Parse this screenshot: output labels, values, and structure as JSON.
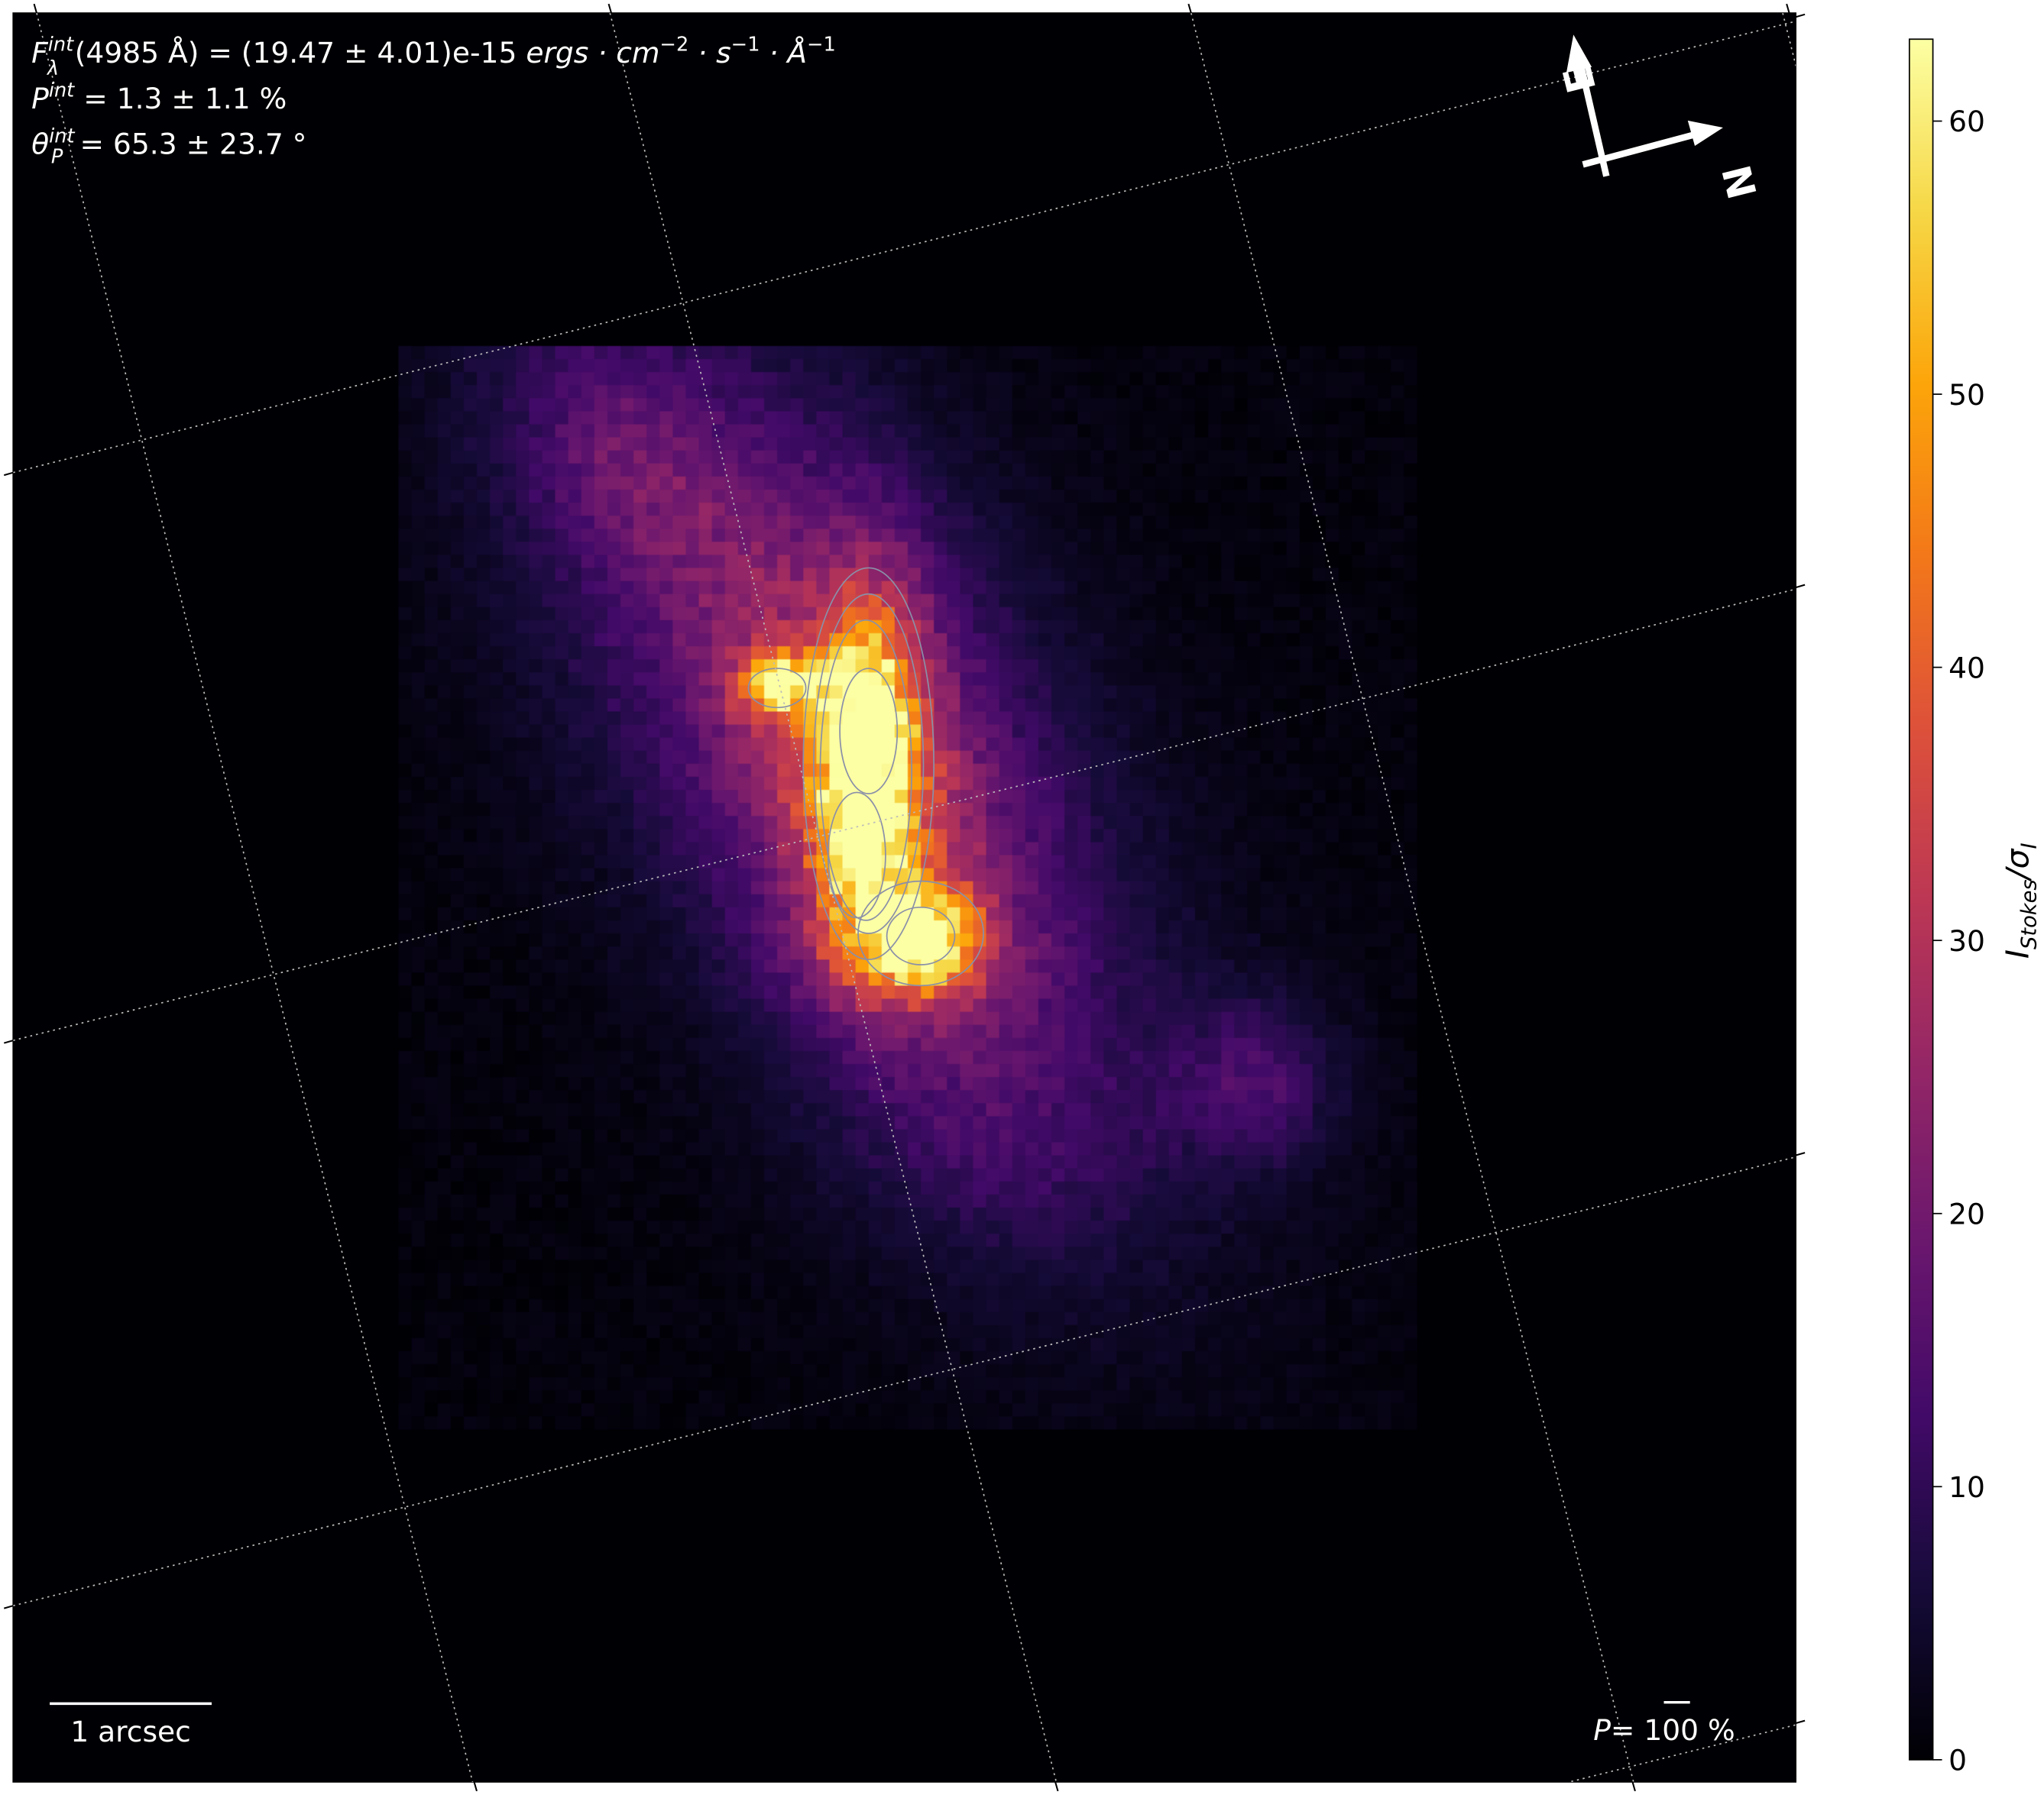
{
  "chart_data": {
    "type": "heatmap",
    "title": "",
    "colormap": "inferno",
    "colorbar": {
      "label": "I_Stokes/σ_I",
      "label_main": "I",
      "label_sub": "Stokes",
      "label_den": "/σ",
      "label_den_sub": "I",
      "range": [
        0,
        63
      ],
      "ticks": [
        0,
        10,
        20,
        30,
        40,
        50,
        60
      ],
      "tick_labels": [
        "0",
        "10",
        "20",
        "30",
        "40",
        "50",
        "60"
      ]
    },
    "grid": true,
    "contours": true,
    "annotations": {
      "flux": {
        "symbol": "F",
        "sup": "int",
        "sub": "λ",
        "body": "(4985 Å) = (19.47 ± 4.01)e-15 ",
        "units": "ergs · cm",
        "units_exp1": "−2",
        "units_s": " · s",
        "units_exp2": "−1",
        "units_A": " · Å",
        "units_exp3": "−1"
      },
      "pol_degree": {
        "symbol": "P",
        "sup": "int",
        "body": " = 1.3 ± 1.1 %"
      },
      "pol_angle": {
        "symbol": "θ",
        "sup": "int",
        "sub": "P",
        "body": " = 65.3 ± 23.7 °"
      },
      "scale_bar": "1 arcsec",
      "pol_scale": {
        "symbol": "P",
        "body": "= 100 %"
      },
      "compass": {
        "east": "E",
        "north": "N"
      }
    },
    "features": [
      {
        "desc": "bright core",
        "peak": 63
      },
      {
        "desc": "secondary knot north-west",
        "peak": 55
      },
      {
        "desc": "southern knot",
        "peak": 60
      }
    ]
  },
  "colors": {
    "background": "#000004",
    "text": "#ffffff",
    "contour": "#8a8fa8"
  }
}
